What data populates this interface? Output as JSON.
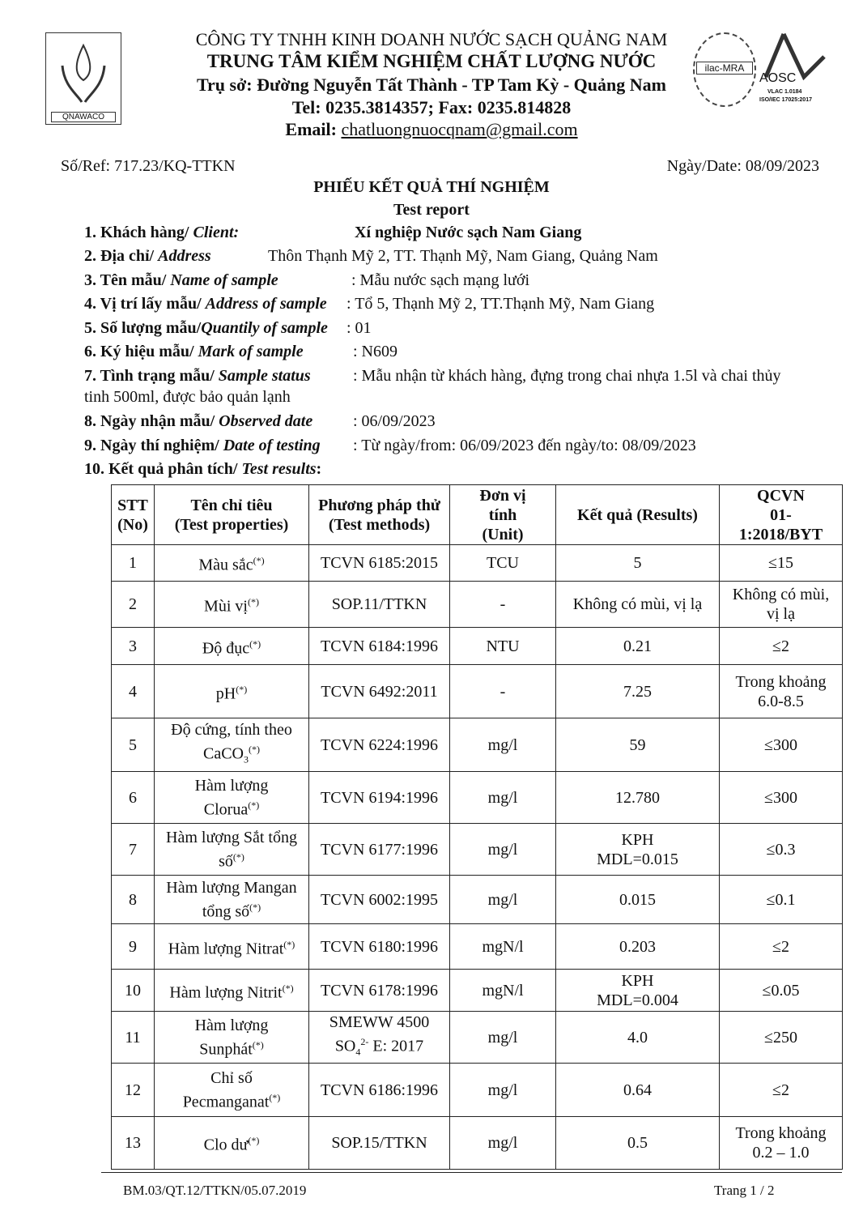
{
  "header": {
    "company": "CÔNG TY TNHH KINH DOANH NƯỚC SẠCH QUẢNG NAM",
    "center": "TRUNG TÂM KIỂM NGHIỆM CHẤT LƯỢNG NƯỚC",
    "address": "Trụ sở: Đường Nguyễn Tất Thành - TP Tam Kỳ -  Quảng Nam",
    "phone": "Tel: 0235.3814357; Fax: 0235.814828",
    "email_label": "Email: ",
    "email": "chatluongnuocqnam@gmail.com",
    "logo_text": "QNAWACO",
    "ilac_text": "ilac-MRA",
    "aosc_text": "AOSC",
    "aosc_sub1": "VLAC 1.0184",
    "aosc_sub2": "ISO/IEC 17025:2017"
  },
  "ref": "Số/Ref: 717.23/KQ-TTKN",
  "date": "Ngày/Date: 08/09/2023",
  "title": "PHIẾU KẾT QUẢ THÍ NGHIỆM",
  "subtitle": "Test report",
  "info": [
    {
      "label": "1. Khách hàng/ ",
      "label_it": "Client:",
      "value": "Xí nghiệp Nước sạch Nam Giang"
    },
    {
      "label": "2. Địa chỉ/ ",
      "label_it": "Address",
      "value": "Thôn Thạnh Mỹ 2, TT. Thạnh Mỹ, Nam Giang, Quảng Nam"
    },
    {
      "label": "3. Tên mẫu/ ",
      "label_it": "Name of sample",
      "value": ": Mẫu nước sạch mạng lưới"
    },
    {
      "label": "4. Vị trí lấy mẫu/ ",
      "label_it": "Address of sample",
      "value": ": Tổ 5, Thạnh Mỹ 2, TT.Thạnh Mỹ, Nam Giang"
    },
    {
      "label": "5. Số lượng mẫu/",
      "label_it": "Quantily of sample",
      "value": ": 01"
    },
    {
      "label": "6. Ký hiệu mẫu/ ",
      "label_it": "Mark of sample",
      "value": ": N609"
    },
    {
      "label": "7. Tình trạng mẫu/ ",
      "label_it": "Sample status",
      "value": ": Mẫu nhận từ khách hàng, đựng trong chai nhựa 1.5l và chai thủy",
      "value2": "tinh 500ml, được bảo quản lạnh"
    },
    {
      "label": "8. Ngày nhận mẫu/ ",
      "label_it": "Observed date",
      "value": ": 06/09/2023"
    },
    {
      "label": "9. Ngày thí nghiệm/ ",
      "label_it": "Date of testing",
      "value": ": Từ ngày/from: 06/09/2023  đến ngày/to: 08/09/2023"
    },
    {
      "label": "10. Kết quả phân tích/ ",
      "label_it": "Test results",
      "value": ""
    }
  ],
  "table": {
    "headers": [
      [
        "STT",
        "(No)"
      ],
      [
        "Tên chỉ tiêu",
        "(Test properties)"
      ],
      [
        "Phương pháp thử",
        "(Test methods)"
      ],
      [
        "Đơn vị",
        "tính",
        "(Unit)"
      ],
      [
        "Kết quả (Results)"
      ],
      [
        "QCVN",
        "01-",
        "1:2018/BYT"
      ]
    ],
    "rows": [
      {
        "no": "1",
        "name": [
          "Màu sắc"
        ],
        "method": [
          "TCVN 6185:2015"
        ],
        "unit": "TCU",
        "result": [
          "5"
        ],
        "limit": [
          "≤15"
        ]
      },
      {
        "no": "2",
        "name": [
          "Mùi vị"
        ],
        "method": [
          "SOP.11/TTKN"
        ],
        "unit": "-",
        "result": [
          "Không có mùi, vị lạ"
        ],
        "limit": [
          "Không có mùi,",
          "vị lạ"
        ]
      },
      {
        "no": "3",
        "name": [
          "Độ đục"
        ],
        "method": [
          "TCVN 6184:1996"
        ],
        "unit": "NTU",
        "result": [
          "0.21"
        ],
        "limit": [
          "≤2"
        ]
      },
      {
        "no": "4",
        "name": [
          "pH"
        ],
        "method": [
          "TCVN 6492:2011"
        ],
        "unit": "-",
        "result": [
          "7.25"
        ],
        "limit": [
          "Trong khoảng",
          "6.0-8.5"
        ]
      },
      {
        "no": "5",
        "name": [
          "Độ cứng, tính theo",
          "CaCO"
        ],
        "sub": "3",
        "method": [
          "TCVN 6224:1996"
        ],
        "unit": "mg/l",
        "result": [
          "59"
        ],
        "limit": [
          "≤300"
        ]
      },
      {
        "no": "6",
        "name": [
          "Hàm lượng",
          "Clorua"
        ],
        "method": [
          "TCVN 6194:1996"
        ],
        "unit": "mg/l",
        "result": [
          "12.780"
        ],
        "limit": [
          "≤300"
        ]
      },
      {
        "no": "7",
        "name": [
          "Hàm lượng Sắt tổng",
          "số"
        ],
        "method": [
          "TCVN 6177:1996"
        ],
        "unit": "mg/l",
        "result": [
          "KPH",
          "MDL=0.015"
        ],
        "limit": [
          "≤0.3"
        ]
      },
      {
        "no": "8",
        "name": [
          "Hàm lượng Mangan",
          "tổng số"
        ],
        "method": [
          "TCVN 6002:1995"
        ],
        "unit": "mg/l",
        "result": [
          "0.015"
        ],
        "limit": [
          "≤0.1"
        ]
      },
      {
        "no": "9",
        "name": [
          "Hàm lượng Nitrat"
        ],
        "method": [
          "TCVN 6180:1996"
        ],
        "unit": "mgN/l",
        "result": [
          "0.203"
        ],
        "limit": [
          "≤2"
        ]
      },
      {
        "no": "10",
        "name": [
          "Hàm lượng Nitrit"
        ],
        "method": [
          "TCVN 6178:1996"
        ],
        "unit": "mgN/l",
        "result": [
          "KPH",
          "MDL=0.004"
        ],
        "limit": [
          "≤0.05"
        ]
      },
      {
        "no": "11",
        "name": [
          "Hàm lượng",
          "Sunphát"
        ],
        "method": [
          "SMEWW 4500",
          "SO"
        ],
        "method_sub": "4",
        "method_sup": "2-",
        "method_tail": " E: 2017",
        "unit": "mg/l",
        "result": [
          "4.0"
        ],
        "limit": [
          "≤250"
        ]
      },
      {
        "no": "12",
        "name": [
          "Chỉ số",
          "Pecmanganat"
        ],
        "method": [
          "TCVN 6186:1996"
        ],
        "unit": "mg/l",
        "result": [
          "0.64"
        ],
        "limit": [
          "≤2"
        ]
      },
      {
        "no": "13",
        "name": [
          "Clo dư"
        ],
        "method": [
          "SOP.15/TTKN"
        ],
        "unit": "mg/l",
        "result": [
          "0.5"
        ],
        "limit": [
          "Trong khoảng",
          "0.2 – 1.0"
        ]
      }
    ],
    "star": "(*)"
  },
  "footer": {
    "code": "BM.03/QT.12/TTKN/05.07.2019",
    "page": "Trang 1 / 2"
  }
}
